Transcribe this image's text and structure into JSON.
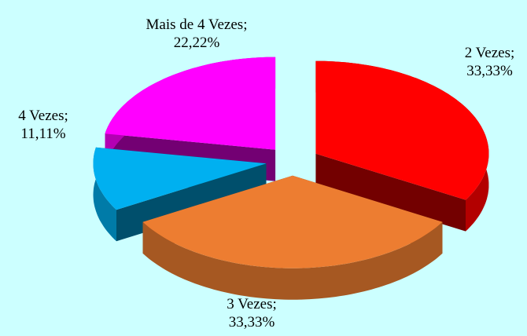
{
  "chart_data": {
    "type": "pie3d",
    "categories": [
      "2 Vezes",
      "3 Vezes",
      "4 Vezes",
      "Mais de 4 Vezes"
    ],
    "values": [
      33.33,
      33.33,
      11.11,
      22.22
    ],
    "value_labels": [
      "33,33%",
      "33,33%",
      "11,11%",
      "22,22%"
    ],
    "label_separator": ";",
    "colors": [
      "#ff0000",
      "#ed7d31",
      "#00b0f0",
      "#ff00ff"
    ]
  }
}
